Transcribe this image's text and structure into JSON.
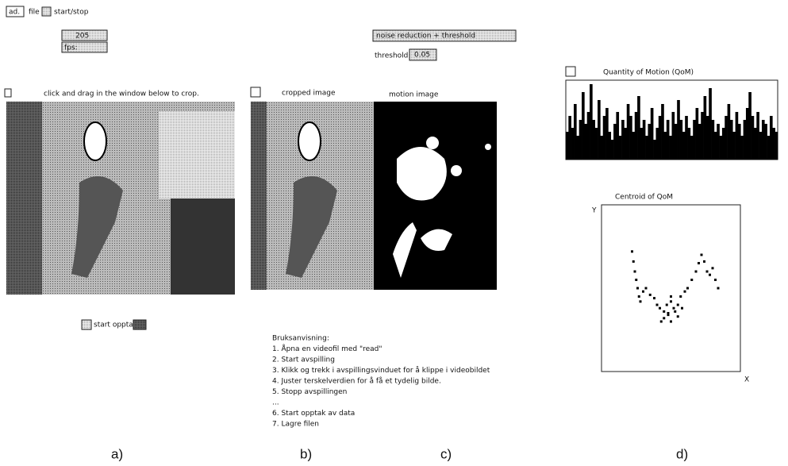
{
  "toolbar": {
    "read": "ad.",
    "file": "file",
    "start_stop": "start/stop"
  },
  "fps": {
    "value": "205",
    "label": "fps:"
  },
  "crop_hint": "click and drag in the window below to crop.",
  "panels": {
    "cropped": "cropped image",
    "motion": "motion image"
  },
  "filter": {
    "menu": "noise reduction + threshold",
    "threshold_label": "threshold",
    "threshold_value": 0.05
  },
  "qom": {
    "title": "Quantity of Motion (QoM)",
    "values": [
      0.35,
      0.55,
      0.4,
      0.7,
      0.3,
      0.5,
      0.85,
      0.45,
      0.6,
      0.95,
      0.5,
      0.4,
      0.75,
      0.3,
      0.55,
      0.65,
      0.35,
      0.25,
      0.45,
      0.6,
      0.3,
      0.5,
      0.4,
      0.7,
      0.55,
      0.35,
      0.6,
      0.8,
      0.4,
      0.5,
      0.3,
      0.45,
      0.65,
      0.25,
      0.4,
      0.55,
      0.7,
      0.35,
      0.5,
      0.3,
      0.6,
      0.45,
      0.75,
      0.5,
      0.35,
      0.55,
      0.4,
      0.3,
      0.5,
      0.65,
      0.45,
      0.6,
      0.8,
      0.55,
      0.9,
      0.5,
      0.35,
      0.45,
      0.3,
      0.4,
      0.55,
      0.7,
      0.5,
      0.35,
      0.6,
      0.45,
      0.3,
      0.5,
      0.65,
      0.85,
      0.55,
      0.4,
      0.6,
      0.35,
      0.5,
      0.45,
      0.3,
      0.55,
      0.4,
      0.35
    ]
  },
  "centroid": {
    "title": "Centroid of QoM",
    "y_label": "Y",
    "x_label": "X",
    "x": [
      0.22,
      0.23,
      0.24,
      0.25,
      0.26,
      0.27,
      0.28,
      0.3,
      0.32,
      0.35,
      0.38,
      0.4,
      0.42,
      0.45,
      0.48,
      0.5,
      0.52,
      0.55,
      0.57,
      0.6,
      0.62,
      0.65,
      0.68,
      0.7,
      0.72,
      0.74,
      0.76,
      0.78,
      0.8,
      0.82,
      0.84,
      0.5,
      0.47,
      0.53,
      0.45,
      0.55,
      0.43,
      0.58,
      0.5,
      0.48
    ],
    "y": [
      0.72,
      0.66,
      0.6,
      0.55,
      0.5,
      0.45,
      0.42,
      0.48,
      0.5,
      0.46,
      0.44,
      0.4,
      0.38,
      0.36,
      0.35,
      0.42,
      0.38,
      0.4,
      0.45,
      0.48,
      0.5,
      0.55,
      0.6,
      0.65,
      0.7,
      0.66,
      0.6,
      0.58,
      0.62,
      0.55,
      0.5,
      0.45,
      0.4,
      0.36,
      0.32,
      0.33,
      0.3,
      0.38,
      0.3,
      0.34
    ]
  },
  "record": "start opptak",
  "instructions": [
    "Bruksanvisning:",
    "1. Åpna en videofil med \"read\"",
    "2. Start avspilling",
    "3. Klikk og trekk i avspillingsvinduet for å klippe i videobildet",
    "4. Juster terskelverdien for å få et tydelig bilde.",
    "5. Stopp avspillingen",
    "...",
    "6. Start opptak av data",
    "7. Lagre filen"
  ],
  "captions": [
    "a)",
    "b)",
    "c)",
    "d)"
  ]
}
